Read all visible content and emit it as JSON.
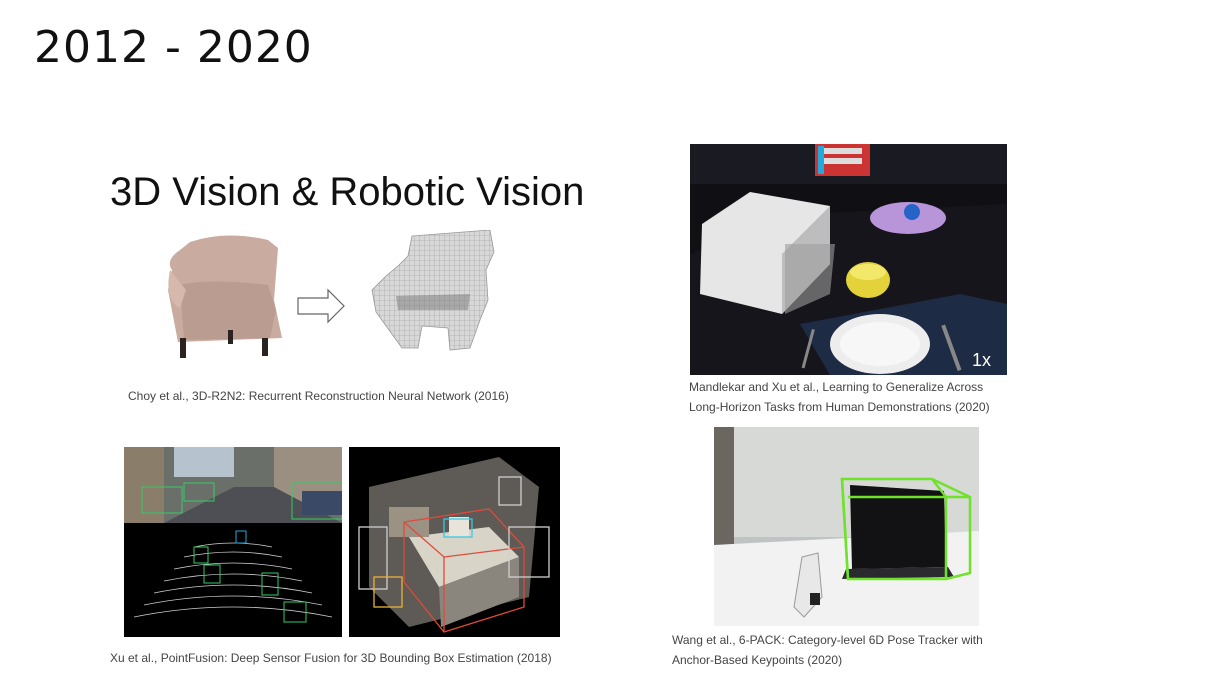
{
  "slide": {
    "title": "2012 - 2020",
    "subtitle": "3D Vision & Robotic Vision"
  },
  "figures": {
    "choy": {
      "caption": "Choy et al., 3D-R2N2: Recurrent Reconstruction Neural Network (2016)"
    },
    "mandlekar": {
      "caption_line1": "Mandlekar and Xu et al., Learning to Generalize Across",
      "caption_line2": "Long-Horizon Tasks from Human Demonstrations (2020)",
      "speed_label": "1x"
    },
    "xu": {
      "caption": "Xu et al., PointFusion: Deep Sensor Fusion for 3D Bounding Box Estimation (2018)"
    },
    "wang": {
      "caption_line1": "Wang et al., 6-PACK: Category-level 6D Pose Tracker with",
      "caption_line2": "Anchor-Based Keypoints (2020)"
    }
  }
}
